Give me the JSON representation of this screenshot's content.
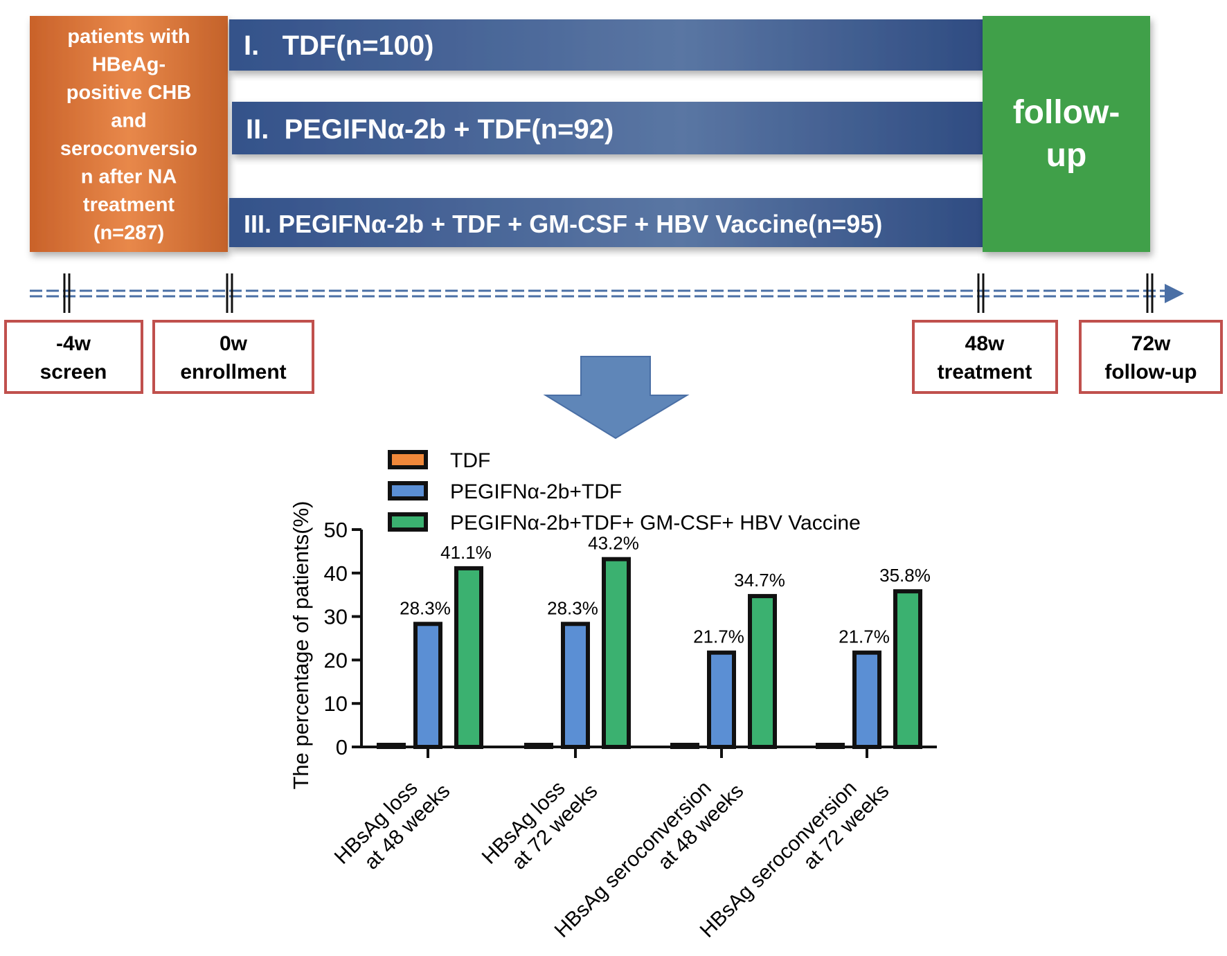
{
  "colors": {
    "orange": "#d9743a",
    "blue": "#3f5e93",
    "green": "#3fa04a",
    "box_border": "#c0504d",
    "arrow": "#5f86b8",
    "tdf": "#f0883a",
    "peg": "#5b8fd4",
    "combo": "#3bb170"
  },
  "enrollment_box": {
    "lines": [
      "patients with",
      "HBeAg-",
      "positive CHB",
      "and",
      "seroconversio",
      "n after NA",
      "treatment",
      "(n=287)"
    ]
  },
  "arms": [
    {
      "label": "I.   TDF(n=100)"
    },
    {
      "label": "II.  PEGIFNα-2b + TDF(n=92)"
    },
    {
      "label": "III. PEGIFNα-2b + TDF + GM-CSF + HBV Vaccine(n=95)"
    }
  ],
  "followup_box": {
    "lines": [
      "follow-",
      "up"
    ]
  },
  "timeline": [
    {
      "week": "-4w",
      "label": "screen"
    },
    {
      "week": "0w",
      "label": "enrollment"
    },
    {
      "week": "48w",
      "label": "treatment"
    },
    {
      "week": "72w",
      "label": "follow-up"
    }
  ],
  "chart_data": {
    "type": "bar",
    "ylabel": "The percentage of patients(%)",
    "ylim": [
      0,
      50
    ],
    "yticks": [
      "0",
      "10",
      "20",
      "30",
      "40",
      "50"
    ],
    "categories": [
      [
        "HBsAg loss",
        "at 48 weeks"
      ],
      [
        "HBsAg loss",
        "at 72 weeks"
      ],
      [
        "HBsAg seroconversion",
        "at 48 weeks"
      ],
      [
        "HBsAg seroconversion",
        "at 72 weeks"
      ]
    ],
    "legend_position": "top",
    "series": [
      {
        "name": "TDF",
        "values": [
          0,
          0,
          0,
          0
        ],
        "labels": [
          "",
          "",
          "",
          ""
        ]
      },
      {
        "name": "PEGIFNα-2b+TDF",
        "values": [
          28.3,
          28.3,
          21.7,
          21.7
        ],
        "labels": [
          "28.3%",
          "28.3%",
          "21.7%",
          "21.7%"
        ]
      },
      {
        "name": "PEGIFNα-2b+TDF+ GM-CSF+ HBV Vaccine",
        "values": [
          41.1,
          43.2,
          34.7,
          35.8
        ],
        "labels": [
          "41.1%",
          "43.2%",
          "34.7%",
          "35.8%"
        ]
      }
    ]
  }
}
